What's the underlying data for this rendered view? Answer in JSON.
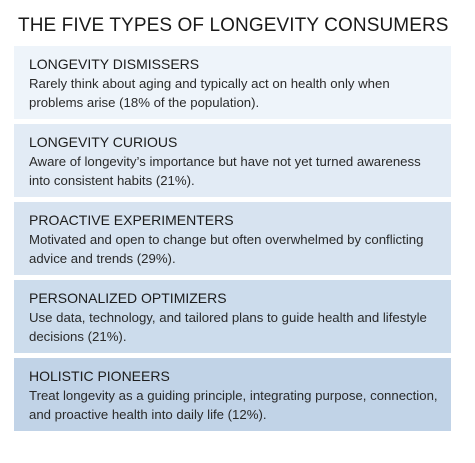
{
  "title": "THE FIVE TYPES OF LONGEVITY CONSUMERS",
  "segments": [
    {
      "name": "LONGEVITY DISMISSERS",
      "description": "Rarely think about aging and typically act on health only when problems arise (18% of the population).",
      "share_percent": 18
    },
    {
      "name": "LONGEVITY CURIOUS",
      "description": "Aware of longevity’s importance but have not yet turned awareness into consistent habits (21%).",
      "share_percent": 21
    },
    {
      "name": "PROACTIVE EXPERIMENTERS",
      "description": "Motivated and open to change but often overwhelmed by conflicting advice and trends (29%).",
      "share_percent": 29
    },
    {
      "name": "PERSONALIZED OPTIMIZERS",
      "description": "Use data, technology, and tailored plans to guide health and lifestyle decisions (21%).",
      "share_percent": 21
    },
    {
      "name": "HOLISTIC PIONEERS",
      "description": "Treat longevity as a guiding principle, integrating purpose, connection, and proactive health into daily life (12%).",
      "share_percent": 12
    }
  ],
  "colors": {
    "card_backgrounds": [
      "#eef4fa",
      "#e2ebf5",
      "#d7e3f0",
      "#ccdcec",
      "#c1d3e7"
    ],
    "text": "#1f1f1f"
  }
}
